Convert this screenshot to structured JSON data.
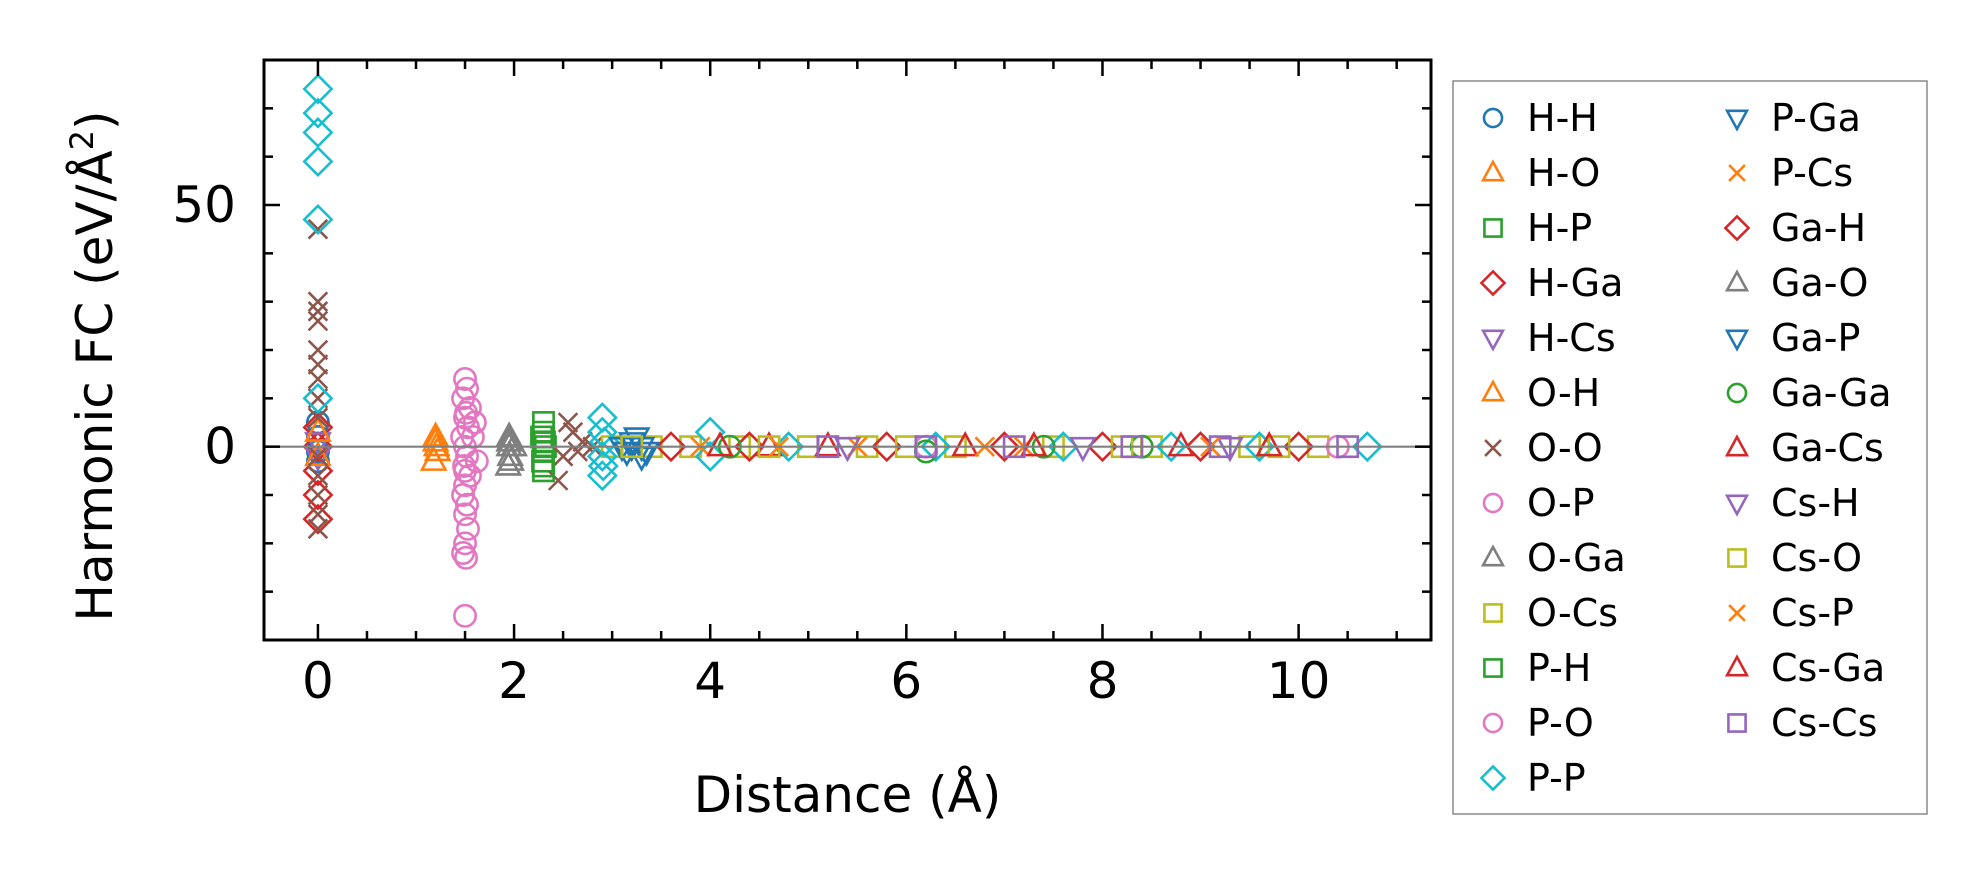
{
  "chart_data": {
    "type": "scatter",
    "xlabel": "Distance (Å)",
    "ylabel_main": "Harmonic FC (eV/Å",
    "ylabel_sup": "2",
    "ylabel_close": ")",
    "xlim": [
      -0.55,
      11.35
    ],
    "ylim": [
      -40,
      80
    ],
    "xticks": [
      0,
      2,
      4,
      6,
      8,
      10
    ],
    "xtick_labels": [
      "0",
      "2",
      "4",
      "6",
      "8",
      "10"
    ],
    "xminor": [
      0.5,
      1,
      1.5,
      2.5,
      3,
      3.5,
      4.5,
      5,
      5.5,
      6.5,
      7,
      7.5,
      8.5,
      9,
      9.5,
      10.5,
      11
    ],
    "yticks": [
      0,
      50
    ],
    "ytick_labels": [
      "0",
      "50"
    ],
    "yminor": [
      -30,
      -20,
      -10,
      10,
      20,
      30,
      40,
      60,
      70
    ],
    "reference_line_y": 0,
    "grid": false,
    "legend_position": "outside-right",
    "series": [
      {
        "name": "H-H",
        "marker": "circle",
        "color": "#1f77b4",
        "points": [
          [
            0,
            2
          ],
          [
            0,
            -1
          ],
          [
            0,
            5
          ],
          [
            0,
            -3
          ]
        ]
      },
      {
        "name": "H-O",
        "marker": "triangle-up",
        "color": "#ff7f0e",
        "points": [
          [
            1.2,
            1
          ],
          [
            1.22,
            -1
          ],
          [
            1.18,
            -3
          ],
          [
            1.21,
            0
          ],
          [
            1.2,
            2
          ]
        ]
      },
      {
        "name": "H-P",
        "marker": "square",
        "color": "#2ca02c",
        "points": [
          [
            2.3,
            5
          ],
          [
            2.3,
            3
          ],
          [
            2.31,
            1
          ],
          [
            2.3,
            -1
          ],
          [
            2.29,
            -3
          ],
          [
            2.3,
            -5
          ],
          [
            2.32,
            0
          ]
        ]
      },
      {
        "name": "H-Ga",
        "marker": "diamond",
        "color": "#d62728",
        "points": [
          [
            0,
            -15
          ],
          [
            0,
            -10
          ],
          [
            0,
            -5
          ],
          [
            0,
            0
          ],
          [
            0,
            4
          ]
        ]
      },
      {
        "name": "H-Cs",
        "marker": "triangle-down",
        "color": "#9467bd",
        "points": [
          [
            0,
            1
          ],
          [
            0,
            -2
          ]
        ]
      },
      {
        "name": "O-H",
        "marker": "triangle-up",
        "color": "#ff7f0e",
        "points": [
          [
            0,
            3
          ],
          [
            0,
            -2
          ]
        ]
      },
      {
        "name": "O-O",
        "marker": "x",
        "color": "#8c564b",
        "points": [
          [
            0,
            45
          ],
          [
            0,
            30
          ],
          [
            0,
            28
          ],
          [
            0,
            26
          ],
          [
            0,
            20
          ],
          [
            0,
            17
          ],
          [
            0,
            14
          ],
          [
            0,
            10
          ],
          [
            0,
            6
          ],
          [
            0,
            -2
          ],
          [
            0,
            -6
          ],
          [
            0,
            -10
          ],
          [
            0,
            -14
          ],
          [
            0,
            -17
          ],
          [
            2.6,
            3
          ],
          [
            2.7,
            1
          ],
          [
            2.5,
            -2
          ],
          [
            2.55,
            5
          ],
          [
            2.45,
            -7
          ],
          [
            2.8,
            0
          ],
          [
            2.65,
            -1
          ]
        ]
      },
      {
        "name": "O-P",
        "marker": "circle",
        "color": "#e377c2",
        "points": [
          [
            1.5,
            14
          ],
          [
            1.52,
            12
          ],
          [
            1.48,
            10
          ],
          [
            1.55,
            8
          ],
          [
            1.5,
            6
          ],
          [
            1.53,
            4
          ],
          [
            1.47,
            2
          ],
          [
            1.5,
            0
          ],
          [
            1.52,
            -2
          ],
          [
            1.49,
            -4
          ],
          [
            1.55,
            -6
          ],
          [
            1.5,
            -8
          ],
          [
            1.48,
            -10
          ],
          [
            1.52,
            -12
          ],
          [
            1.5,
            -14
          ],
          [
            1.53,
            -17
          ],
          [
            1.5,
            -20
          ],
          [
            1.48,
            -22
          ],
          [
            1.51,
            -23
          ],
          [
            1.5,
            -35
          ],
          [
            1.6,
            5
          ],
          [
            1.62,
            -3
          ],
          [
            1.58,
            2
          ]
        ]
      },
      {
        "name": "O-Ga",
        "marker": "triangle-up",
        "color": "#7f7f7f",
        "points": [
          [
            1.95,
            2
          ],
          [
            1.95,
            0
          ],
          [
            1.96,
            -2
          ],
          [
            1.94,
            -4
          ],
          [
            1.95,
            1
          ]
        ]
      },
      {
        "name": "O-Cs",
        "marker": "square",
        "color": "#bcbd22",
        "points": [
          [
            3,
            0
          ],
          [
            3.4,
            0
          ],
          [
            3.8,
            0
          ],
          [
            4.3,
            0
          ],
          [
            5,
            0
          ],
          [
            5.6,
            0
          ],
          [
            6.5,
            0
          ],
          [
            7.5,
            0
          ],
          [
            8.5,
            0
          ],
          [
            9.5,
            0
          ],
          [
            10.2,
            0
          ]
        ]
      },
      {
        "name": "P-H",
        "marker": "square",
        "color": "#2ca02c",
        "points": [
          [
            2.28,
            2
          ],
          [
            2.3,
            -4
          ]
        ]
      },
      {
        "name": "P-O",
        "marker": "circle",
        "color": "#e377c2",
        "points": [
          [
            1.51,
            7
          ],
          [
            1.5,
            -5
          ],
          [
            6.2,
            0
          ],
          [
            10.4,
            0
          ]
        ]
      },
      {
        "name": "P-P",
        "marker": "diamond",
        "color": "#17becf",
        "points": [
          [
            0,
            74
          ],
          [
            0,
            69
          ],
          [
            0,
            65
          ],
          [
            0,
            59
          ],
          [
            0,
            47
          ],
          [
            0,
            10
          ],
          [
            2.9,
            6
          ],
          [
            2.9,
            3
          ],
          [
            2.92,
            1
          ],
          [
            2.9,
            -2
          ],
          [
            2.91,
            -4
          ],
          [
            2.9,
            -6
          ],
          [
            4,
            3
          ],
          [
            4,
            -2
          ],
          [
            4.8,
            0
          ],
          [
            6.3,
            0
          ],
          [
            7.6,
            0
          ],
          [
            8.7,
            0
          ],
          [
            9.6,
            0
          ],
          [
            10.7,
            0
          ]
        ]
      },
      {
        "name": "P-Ga",
        "marker": "triangle-down",
        "color": "#1f77b4",
        "points": [
          [
            3.2,
            0
          ],
          [
            3.3,
            -2
          ],
          [
            3.25,
            2
          ]
        ]
      },
      {
        "name": "P-Cs",
        "marker": "x",
        "color": "#ff7f0e",
        "points": [
          [
            3.9,
            0
          ],
          [
            5.5,
            0
          ],
          [
            7.2,
            0
          ]
        ]
      },
      {
        "name": "Ga-H",
        "marker": "diamond",
        "color": "#d62728",
        "points": [
          [
            3.6,
            0
          ],
          [
            4.4,
            0
          ],
          [
            5.8,
            0
          ],
          [
            7,
            0
          ],
          [
            8,
            0
          ],
          [
            9,
            0
          ],
          [
            10,
            0
          ]
        ]
      },
      {
        "name": "Ga-O",
        "marker": "triangle-up",
        "color": "#7f7f7f",
        "points": [
          [
            1.97,
            -3
          ],
          [
            2,
            0
          ]
        ]
      },
      {
        "name": "Ga-P",
        "marker": "triangle-down",
        "color": "#1f77b4",
        "points": [
          [
            3.1,
            0
          ],
          [
            3.15,
            -1
          ],
          [
            3.2,
            1
          ],
          [
            3.3,
            0
          ],
          [
            3.35,
            -1
          ]
        ]
      },
      {
        "name": "Ga-Ga",
        "marker": "circle",
        "color": "#2ca02c",
        "points": [
          [
            4.2,
            0
          ],
          [
            6.2,
            -1
          ],
          [
            7.4,
            0
          ],
          [
            8.4,
            0
          ]
        ]
      },
      {
        "name": "Ga-Cs",
        "marker": "triangle-up",
        "color": "#d62728",
        "points": [
          [
            4.1,
            0
          ],
          [
            4.6,
            0
          ],
          [
            6.6,
            0
          ],
          [
            8.8,
            0
          ]
        ]
      },
      {
        "name": "Cs-H",
        "marker": "triangle-down",
        "color": "#9467bd",
        "points": [
          [
            5.4,
            0
          ],
          [
            7.8,
            0
          ],
          [
            9.3,
            0
          ]
        ]
      },
      {
        "name": "Cs-O",
        "marker": "square",
        "color": "#bcbd22",
        "points": [
          [
            3.2,
            0
          ],
          [
            4.6,
            0
          ],
          [
            6,
            0
          ],
          [
            8.2,
            0
          ],
          [
            9.8,
            0
          ]
        ]
      },
      {
        "name": "Cs-P",
        "marker": "x",
        "color": "#ff7f0e",
        "points": [
          [
            4.7,
            0
          ],
          [
            6.8,
            0
          ],
          [
            9.1,
            0
          ]
        ]
      },
      {
        "name": "Cs-Ga",
        "marker": "triangle-up",
        "color": "#d62728",
        "points": [
          [
            5.2,
            0
          ],
          [
            7.3,
            0
          ],
          [
            9.7,
            0
          ]
        ]
      },
      {
        "name": "Cs-Cs",
        "marker": "square",
        "color": "#9467bd",
        "points": [
          [
            5.2,
            0
          ],
          [
            6.2,
            0
          ],
          [
            7.1,
            0
          ],
          [
            8.3,
            0
          ],
          [
            9.2,
            0
          ],
          [
            10.5,
            0
          ]
        ]
      }
    ]
  }
}
